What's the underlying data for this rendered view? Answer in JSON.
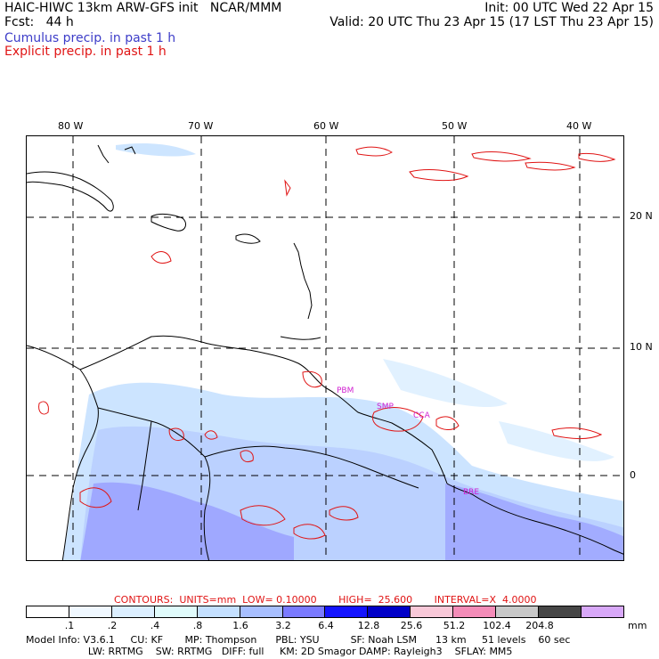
{
  "header": {
    "title": "HAIC-HIWC 13km ARW-GFS init   NCAR/MMM",
    "init": "Init: 00 UTC Wed 22 Apr 15",
    "fcst": "Fcst:   44 h",
    "valid": "Valid: 20 UTC Thu 23 Apr 15 (17 LST Thu 23 Apr 15)",
    "legend_cumulus": "Cumulus precip. in past 1 h",
    "legend_explicit": "Explicit precip. in past 1 h"
  },
  "axes": {
    "lon_labels": [
      "80 W",
      "70 W",
      "60 W",
      "50 W",
      "40 W"
    ],
    "lat_labels": [
      "20 N",
      "10 N",
      "0"
    ]
  },
  "stations": [
    "PBM",
    "SMP",
    "CCA",
    "BRE"
  ],
  "contours": {
    "caption": "CONTOURS:  UNITS=mm  LOW= 0.10000       HIGH=  25.600       INTERVAL=X  4.0000"
  },
  "colorbar": {
    "labels": [
      ".1",
      ".2",
      ".4",
      ".8",
      "1.6",
      "3.2",
      "6.4",
      "12.8",
      "25.6",
      "51.2",
      "102.4",
      "204.8"
    ],
    "unit": "mm",
    "colors": [
      "#ffffff",
      "#f0f8ff",
      "#dcefff",
      "#e0fbfb",
      "#c4e0ff",
      "#a8bfff",
      "#7a7aff",
      "#1414ff",
      "#0000c8",
      "#f8c8d8",
      "#f48cb8",
      "#c8c8c8",
      "#464646",
      "#d8a8f8"
    ]
  },
  "model_info": {
    "line1": "Model Info: V3.6.1     CU: KF       MP: Thompson      PBL: YSU          SF: Noah LSM      13 km     51 levels    60 sec",
    "line2": "                    LW: RRTMG    SW: RRTMG   DIFF: full     KM: 2D Smagor DAMP: Rayleigh3    SFLAY: MM5"
  }
}
